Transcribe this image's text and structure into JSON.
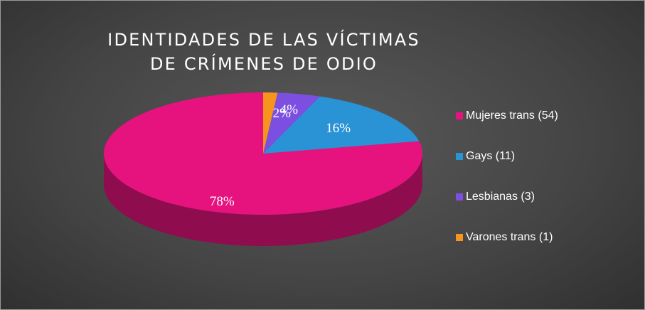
{
  "chart_data": {
    "type": "pie",
    "title_lines": [
      "IDENTIDADES DE LAS VÍCTIMAS",
      "DE CRÍMENES DE ODIO"
    ],
    "slices": [
      {
        "label": "Mujeres trans (54)",
        "value": 54,
        "percent_label": "78%",
        "color": "#e6137f",
        "side_color": "#8f0d4f"
      },
      {
        "label": "Gays (11)",
        "value": 11,
        "percent_label": "16%",
        "color": "#2a93d5",
        "side_color": "#1a5f8a"
      },
      {
        "label": "Lesbianas (3)",
        "value": 3,
        "percent_label": "4%",
        "color": "#7d4fe0",
        "side_color": "#4d2f8c"
      },
      {
        "label": "Varones trans (1)",
        "value": 1,
        "percent_label": "2%",
        "color": "#f7941d",
        "side_color": "#9c5a10"
      }
    ],
    "legend_position": "right",
    "style": "3d"
  }
}
